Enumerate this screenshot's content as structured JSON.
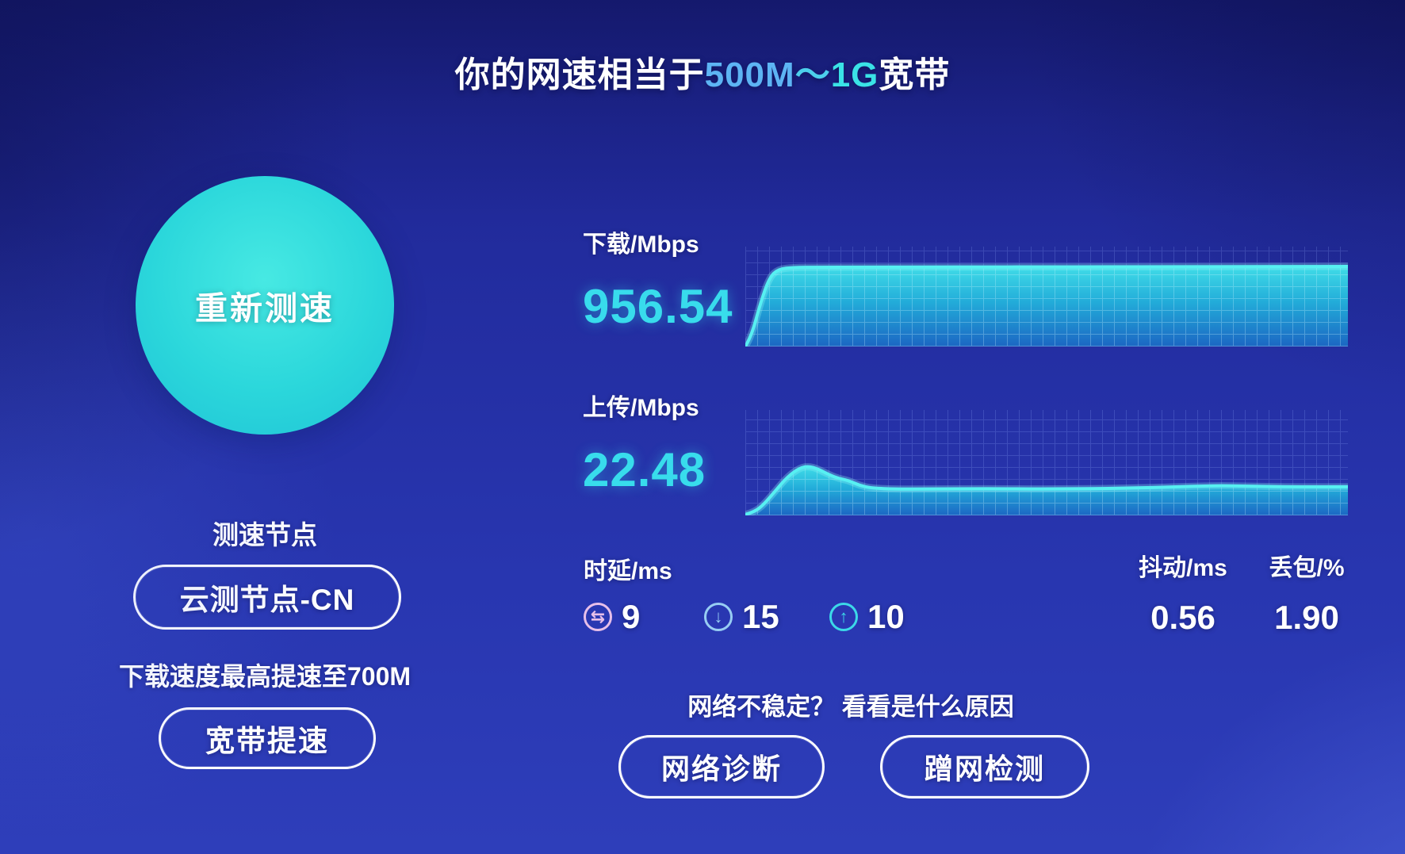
{
  "title": {
    "prefix": "你的网速相当于",
    "highlight_1": "500M",
    "highlight_2": "～",
    "highlight_3": "1G",
    "suffix": "宽带"
  },
  "retest_button": "重新测速",
  "node": {
    "label": "测速节点",
    "value": "云测节点-CN"
  },
  "boost": {
    "promo": "下载速度最高提速至700M",
    "button": "宽带提速"
  },
  "download": {
    "label": "下载/Mbps",
    "value": "956.54"
  },
  "upload": {
    "label": "上传/Mbps",
    "value": "22.48"
  },
  "latency": {
    "label": "时延/ms",
    "items": [
      {
        "icon": "latency-exchange-icon",
        "glyph": "⇆",
        "value": "9"
      },
      {
        "icon": "latency-download-icon",
        "glyph": "↓",
        "value": "15"
      },
      {
        "icon": "latency-upload-icon",
        "glyph": "↑",
        "value": "10"
      }
    ]
  },
  "jitter": {
    "label": "抖动/ms",
    "value": "0.56"
  },
  "packet_loss": {
    "label": "丢包/%",
    "value": "1.90"
  },
  "help": {
    "text": "网络不稳定？ 看看是什么原因",
    "diagnose_button": "网络诊断",
    "freeloader_button": "蹭网检测"
  },
  "colors": {
    "background_blue": "#2533a8",
    "accent_cyan": "#38dcec",
    "circle_button_fill": "#2bd7db",
    "highlight_blue": "#5db4f4",
    "highlight_cyan": "#3ae2e6",
    "chart_line": "#57f0f2",
    "icon_exchange": "#e7bfe9",
    "icon_down": "#97cdf3",
    "icon_up": "#3cd9e8"
  },
  "chart_data": [
    {
      "type": "area",
      "name": "download-speed",
      "title": "下载/Mbps",
      "current_value": 956.54,
      "unit": "Mbps",
      "ylim": [
        0,
        1200
      ],
      "grid": true,
      "legend_position": "none",
      "x": [
        0,
        0.01,
        0.025,
        0.04,
        0.055,
        0.08,
        0.12,
        0.2,
        0.3,
        0.4,
        0.5,
        0.6,
        0.7,
        0.8,
        0.9,
        1.0
      ],
      "values": [
        0,
        120,
        520,
        830,
        930,
        950,
        952,
        953,
        954,
        955,
        956,
        957,
        958,
        959,
        960,
        962
      ]
    },
    {
      "type": "area",
      "name": "upload-speed",
      "title": "上传/Mbps",
      "current_value": 22.48,
      "unit": "Mbps",
      "ylim": [
        0,
        60
      ],
      "grid": true,
      "legend_position": "none",
      "x": [
        0,
        0.015,
        0.03,
        0.05,
        0.07,
        0.09,
        0.105,
        0.12,
        0.14,
        0.155,
        0.17,
        0.19,
        0.21,
        0.25,
        0.3,
        0.4,
        0.5,
        0.6,
        0.7,
        0.78,
        0.85,
        0.92,
        1.0
      ],
      "values": [
        0.5,
        2,
        6,
        14,
        22,
        27,
        28,
        26.5,
        23,
        21,
        20,
        17,
        15.5,
        15,
        15,
        15.2,
        15,
        15.3,
        16,
        17,
        16.5,
        16.2,
        16.3
      ]
    }
  ]
}
